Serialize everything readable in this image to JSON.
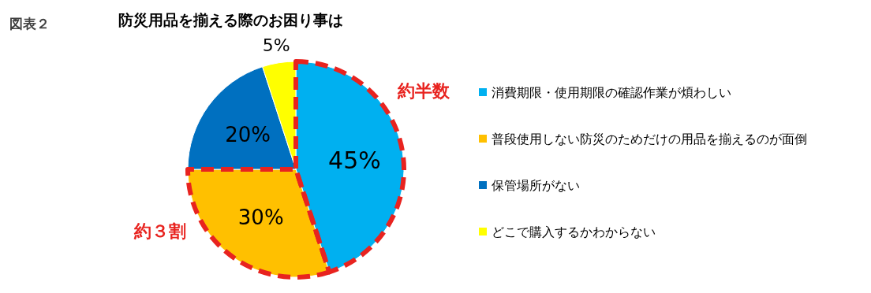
{
  "chart_data": {
    "type": "pie",
    "title": "防災用品を揃える際のお困り事は",
    "categories": [
      "消費期限・使用期限の確認作業が煩わしい",
      "普段使用しない防災のためだけの用品を揃えるのが面倒",
      "保管場所がない",
      "どこで購入するかわからない"
    ],
    "values": [
      45,
      30,
      20,
      5
    ],
    "colors": [
      "#00b0f0",
      "#ffc000",
      "#0070c0",
      "#ffff00"
    ],
    "value_labels": [
      "45%",
      "30%",
      "20%",
      "5%"
    ],
    "legend": "right",
    "annotations": [
      "約半数",
      "約３割",
      "図表２"
    ]
  }
}
